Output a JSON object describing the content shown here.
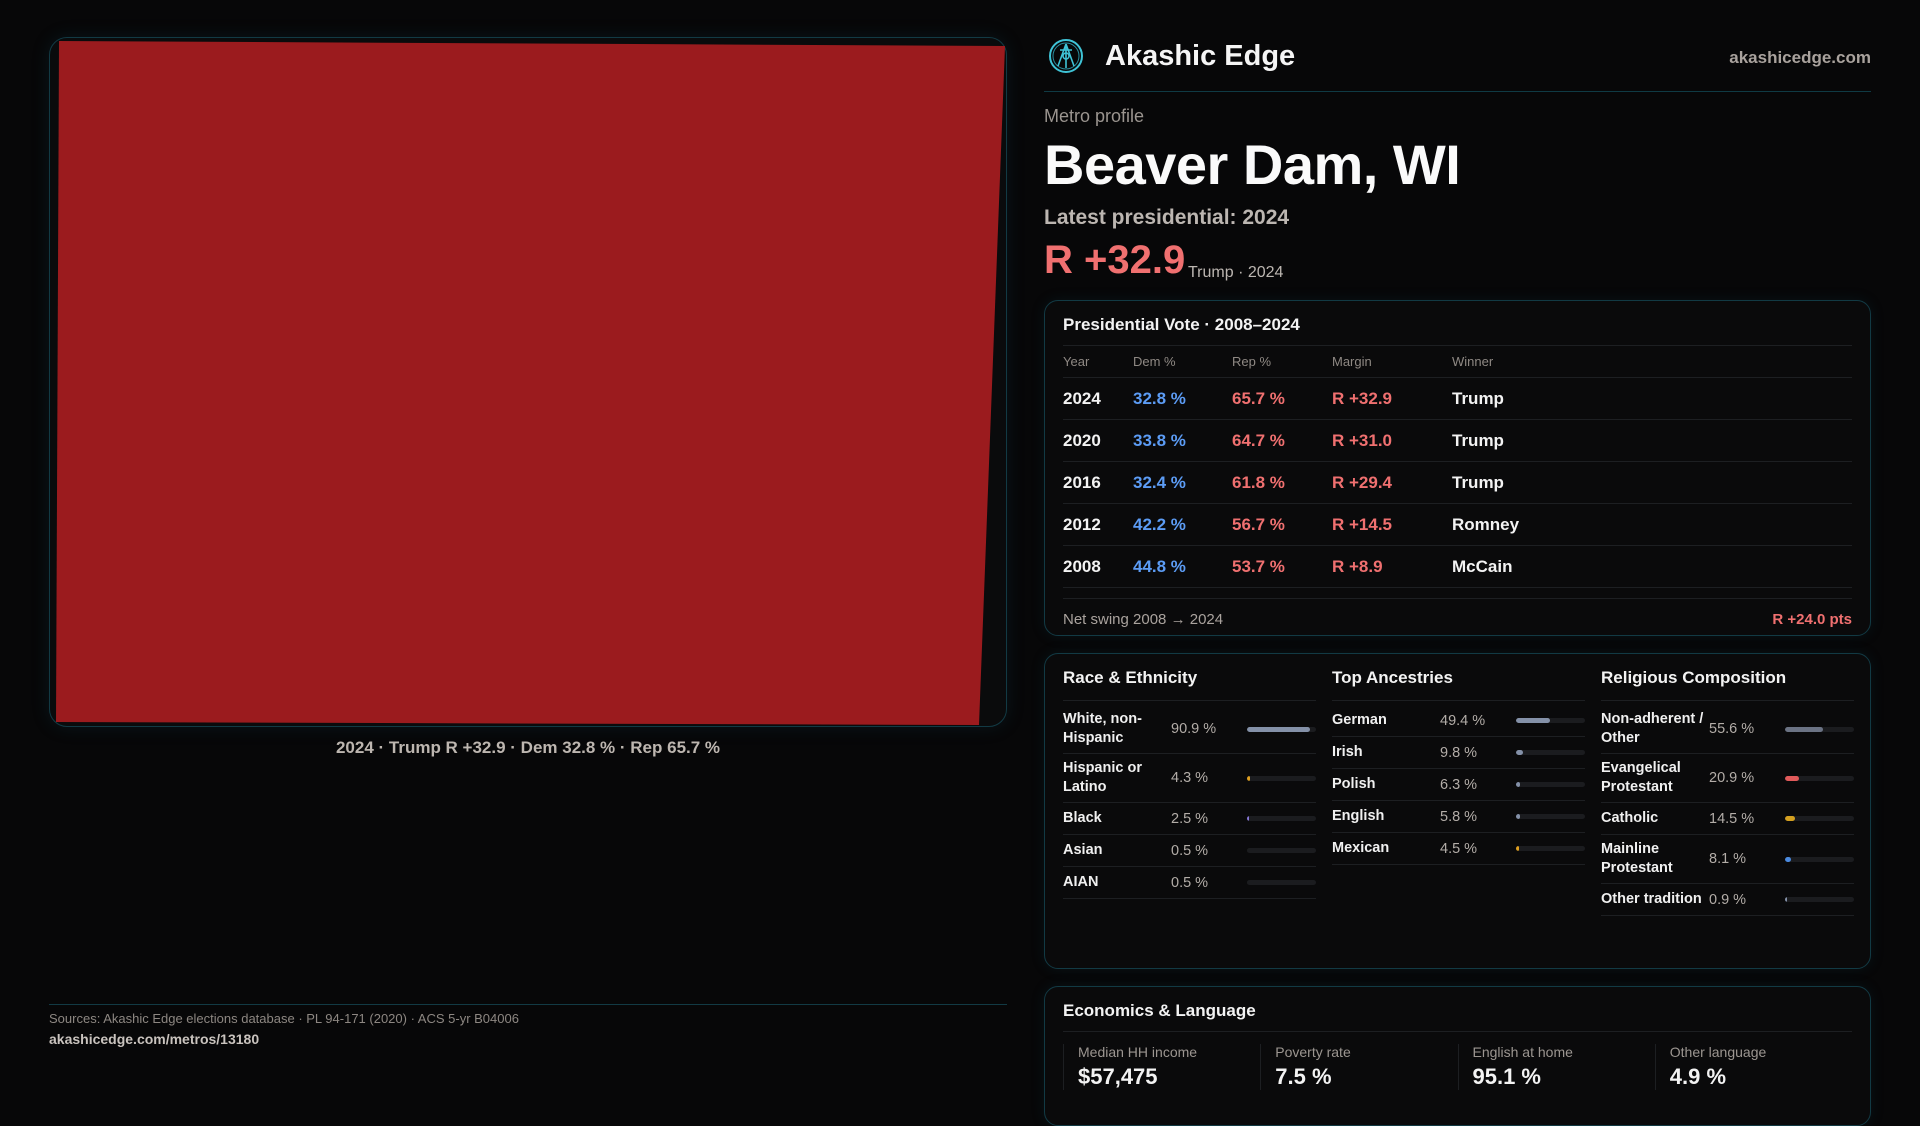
{
  "map": {
    "caption": "2024 · Trump R +32.9 · Dem 32.8 % · Rep 65.7 %",
    "fill_color": "#9b1b1e"
  },
  "header": {
    "brand": "Akashic Edge",
    "site": "akashicedge.com",
    "logo_icon": "akashic-seal-icon"
  },
  "profile": {
    "eyebrow": "Metro profile",
    "title": "Beaver Dam, WI",
    "latest": "Latest presidential: 2024",
    "margin": "R +32.9",
    "margin_sub": "Trump · 2024"
  },
  "vote": {
    "title": "Presidential Vote · 2008–2024",
    "headers": [
      "Year",
      "Dem %",
      "Rep %",
      "Margin",
      "Winner"
    ],
    "rows": [
      {
        "year": "2024",
        "dem": "32.8 %",
        "rep": "65.7 %",
        "margin": "R +32.9",
        "winner": "Trump"
      },
      {
        "year": "2020",
        "dem": "33.8 %",
        "rep": "64.7 %",
        "margin": "R +31.0",
        "winner": "Trump"
      },
      {
        "year": "2016",
        "dem": "32.4 %",
        "rep": "61.8 %",
        "margin": "R +29.4",
        "winner": "Trump"
      },
      {
        "year": "2012",
        "dem": "42.2 %",
        "rep": "56.7 %",
        "margin": "R +14.5",
        "winner": "Romney"
      },
      {
        "year": "2008",
        "dem": "44.8 %",
        "rep": "53.7 %",
        "margin": "R +8.9",
        "winner": "McCain"
      }
    ],
    "net_label": "Net swing 2008 → 2024",
    "net_value": "R +24.0 pts"
  },
  "demographics": [
    {
      "title": "Race & Ethnicity",
      "items": [
        {
          "label": "White, non-Hispanic",
          "value": "90.9 %",
          "pct": 90.9,
          "color": "#8491a8"
        },
        {
          "label": "Hispanic or Latino",
          "value": "4.3 %",
          "pct": 4.3,
          "color": "#e0a020"
        },
        {
          "label": "Black",
          "value": "2.5 %",
          "pct": 2.5,
          "color": "#8878d8"
        },
        {
          "label": "Asian",
          "value": "0.5 %",
          "pct": 0.5,
          "color": "#1b1c1f"
        },
        {
          "label": "AIAN",
          "value": "0.5 %",
          "pct": 0.5,
          "color": "#1b1c1f"
        }
      ]
    },
    {
      "title": "Top Ancestries",
      "items": [
        {
          "label": "German",
          "value": "49.4 %",
          "pct": 49.4,
          "color": "#8491a8"
        },
        {
          "label": "Irish",
          "value": "9.8 %",
          "pct": 9.8,
          "color": "#8491a8"
        },
        {
          "label": "Polish",
          "value": "6.3 %",
          "pct": 6.3,
          "color": "#8491a8"
        },
        {
          "label": "English",
          "value": "5.8 %",
          "pct": 5.8,
          "color": "#8491a8"
        },
        {
          "label": "Mexican",
          "value": "4.5 %",
          "pct": 4.5,
          "color": "#e0a020"
        }
      ]
    },
    {
      "title": "Religious Composition",
      "items": [
        {
          "label": "Non-adherent / Other",
          "value": "55.6 %",
          "pct": 55.6,
          "color": "#6b7384"
        },
        {
          "label": "Evangelical Protestant",
          "value": "20.9 %",
          "pct": 20.9,
          "color": "#e05a5a"
        },
        {
          "label": "Catholic",
          "value": "14.5 %",
          "pct": 14.5,
          "color": "#d4a020"
        },
        {
          "label": "Mainline Protestant",
          "value": "8.1 %",
          "pct": 8.1,
          "color": "#4a8ae0"
        },
        {
          "label": "Other tradition",
          "value": "0.9 %",
          "pct": 0.9,
          "color": "#8491a8"
        }
      ]
    }
  ],
  "economics": {
    "title": "Economics & Language",
    "metrics": [
      {
        "label": "Median HH income",
        "value": "$57,475"
      },
      {
        "label": "Poverty rate",
        "value": "7.5 %"
      },
      {
        "label": "English at home",
        "value": "95.1 %"
      },
      {
        "label": "Other language",
        "value": "4.9 %"
      }
    ]
  },
  "footer": {
    "sources": "Sources: Akashic Edge elections database · PL 94-171 (2020) · ACS 5-yr B04006",
    "url": "akashicedge.com/metros/13180"
  }
}
